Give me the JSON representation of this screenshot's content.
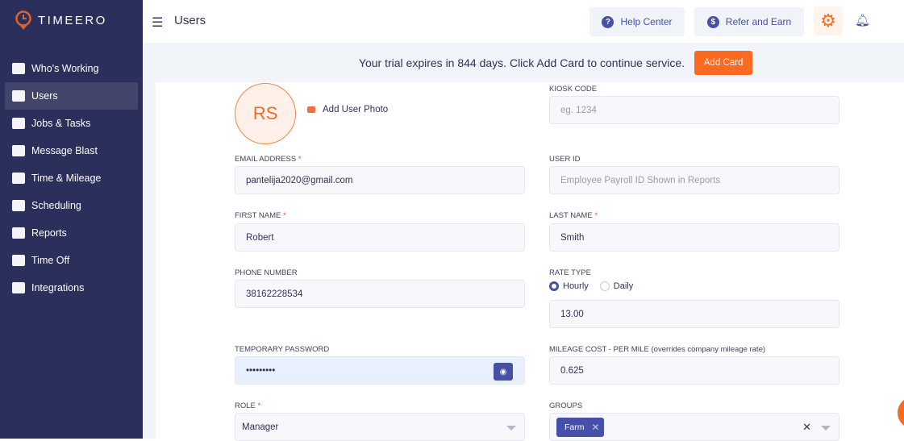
{
  "app": {
    "name": "TIMEERO"
  },
  "sidebar": {
    "items": [
      {
        "label": "Who's Working",
        "icon": "map-icon"
      },
      {
        "label": "Users",
        "icon": "users-icon",
        "active": true
      },
      {
        "label": "Jobs & Tasks",
        "icon": "briefcase-icon"
      },
      {
        "label": "Message Blast",
        "icon": "megaphone-icon"
      },
      {
        "label": "Time & Mileage",
        "icon": "timesheet-icon"
      },
      {
        "label": "Scheduling",
        "icon": "calendar-clock-icon"
      },
      {
        "label": "Reports",
        "icon": "presentation-icon"
      },
      {
        "label": "Time Off",
        "icon": "sleep-icon"
      },
      {
        "label": "Integrations",
        "icon": "monitor-icon"
      }
    ]
  },
  "header": {
    "title": "Users",
    "help_center": "Help Center",
    "refer_earn": "Refer and Earn"
  },
  "banner": {
    "text": "Your trial expires in 844 days. Click Add Card to continue service.",
    "button": "Add Card",
    "accent": "#fb6a21"
  },
  "form": {
    "avatar_initials": "RS",
    "add_photo": "Add User Photo",
    "kiosk_code": {
      "label": "KIOSK CODE",
      "value": "",
      "placeholder": "eg. 1234"
    },
    "email": {
      "label": "EMAIL ADDRESS",
      "value": "pantelija2020@gmail.com",
      "required": "*"
    },
    "user_id": {
      "label": "USER ID",
      "value": "",
      "placeholder": "Employee Payroll ID Shown in Reports"
    },
    "first_name": {
      "label": "FIRST NAME",
      "value": "Robert",
      "required": "*"
    },
    "last_name": {
      "label": "LAST NAME",
      "value": "Smith",
      "required": "*"
    },
    "phone": {
      "label": "PHONE NUMBER",
      "value": "38162228534"
    },
    "rate_type": {
      "label": "RATE TYPE",
      "options": [
        "Hourly",
        "Daily"
      ],
      "selected": "Hourly",
      "value": "13.00"
    },
    "temp_password": {
      "label": "TEMPORARY PASSWORD",
      "value": "•••••••••"
    },
    "mileage": {
      "label": "MILEAGE COST - PER MILE (overrides company mileage rate)",
      "value": "0.625"
    },
    "role": {
      "label": "ROLE",
      "value": "Manager",
      "required": "*"
    },
    "groups": {
      "label": "GROUPS",
      "chips": [
        "Farm"
      ]
    }
  },
  "colors": {
    "sidebar": "#2b2f5b",
    "primary": "#4650a8",
    "accent": "#f56b22"
  }
}
